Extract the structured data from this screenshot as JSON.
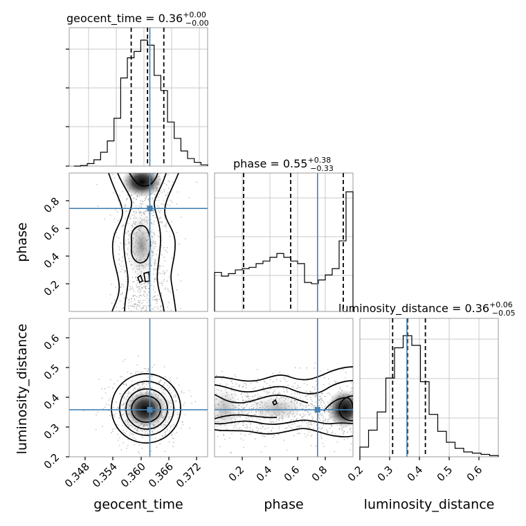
{
  "chart_data": {
    "type": "corner",
    "parameters": [
      "geocent_time",
      "phase",
      "luminosity_distance"
    ],
    "truths": {
      "geocent_time": 0.3603,
      "phase": 0.744,
      "luminosity_distance": 0.358
    },
    "truth_color": "#4682b4",
    "titles": [
      {
        "text": "geocent_time = 0.36",
        "sup": "+0.00",
        "sub": "−0.00"
      },
      {
        "text": "phase = 0.55",
        "sup": "+0.38",
        "sub": "−0.33"
      },
      {
        "text": "luminosity_distance = 0.36",
        "sup": "+0.06",
        "sub": "−0.05"
      }
    ],
    "ranges": {
      "geocent_time": [
        0.343,
        0.3727
      ],
      "phase": [
        0.0,
        1.0
      ],
      "luminosity_distance": [
        0.2,
        0.665
      ]
    },
    "ticks": {
      "geocent_time": [
        "0.348",
        "0.354",
        "0.360",
        "0.366",
        "0.372"
      ],
      "phase": [
        "0.2",
        "0.4",
        "0.6",
        "0.8"
      ],
      "luminosity_distance_y": [
        "0.2",
        "0.3",
        "0.4",
        "0.5",
        "0.6"
      ],
      "luminosity_distance_x": [
        "0.2",
        "0.3",
        "0.4",
        "0.5",
        "0.6"
      ]
    },
    "quantiles": {
      "geocent_time": [
        0.3563,
        0.3598,
        0.3633
      ],
      "phase": [
        0.21,
        0.55,
        0.93
      ],
      "luminosity_distance": [
        0.31,
        0.36,
        0.42
      ]
    },
    "hist_geocent_time": [
      0,
      0.005,
      0.02,
      0.05,
      0.11,
      0.2,
      0.38,
      0.7,
      0.86,
      0.91,
      1.0,
      0.96,
      0.72,
      0.6,
      0.35,
      0.22,
      0.12,
      0.06,
      0.03,
      0.01
    ],
    "hist_phase": [
      0.31,
      0.28,
      0.3,
      0.33,
      0.34,
      0.35,
      0.38,
      0.4,
      0.43,
      0.46,
      0.43,
      0.4,
      0.38,
      0.23,
      0.22,
      0.25,
      0.29,
      0.34,
      0.56,
      0.95
    ],
    "hist_luminosity_distance": [
      0.08,
      0.22,
      0.37,
      0.65,
      0.9,
      1.0,
      0.92,
      0.62,
      0.35,
      0.21,
      0.12,
      0.07,
      0.04,
      0.03,
      0.02,
      0.01
    ],
    "axis_labels": {
      "phase_y": "phase",
      "luminosity_distance_y": "luminosity_distance",
      "geocent_time_x": "geocent_time",
      "phase_x": "phase",
      "luminosity_distance_x": "luminosity_distance"
    }
  }
}
